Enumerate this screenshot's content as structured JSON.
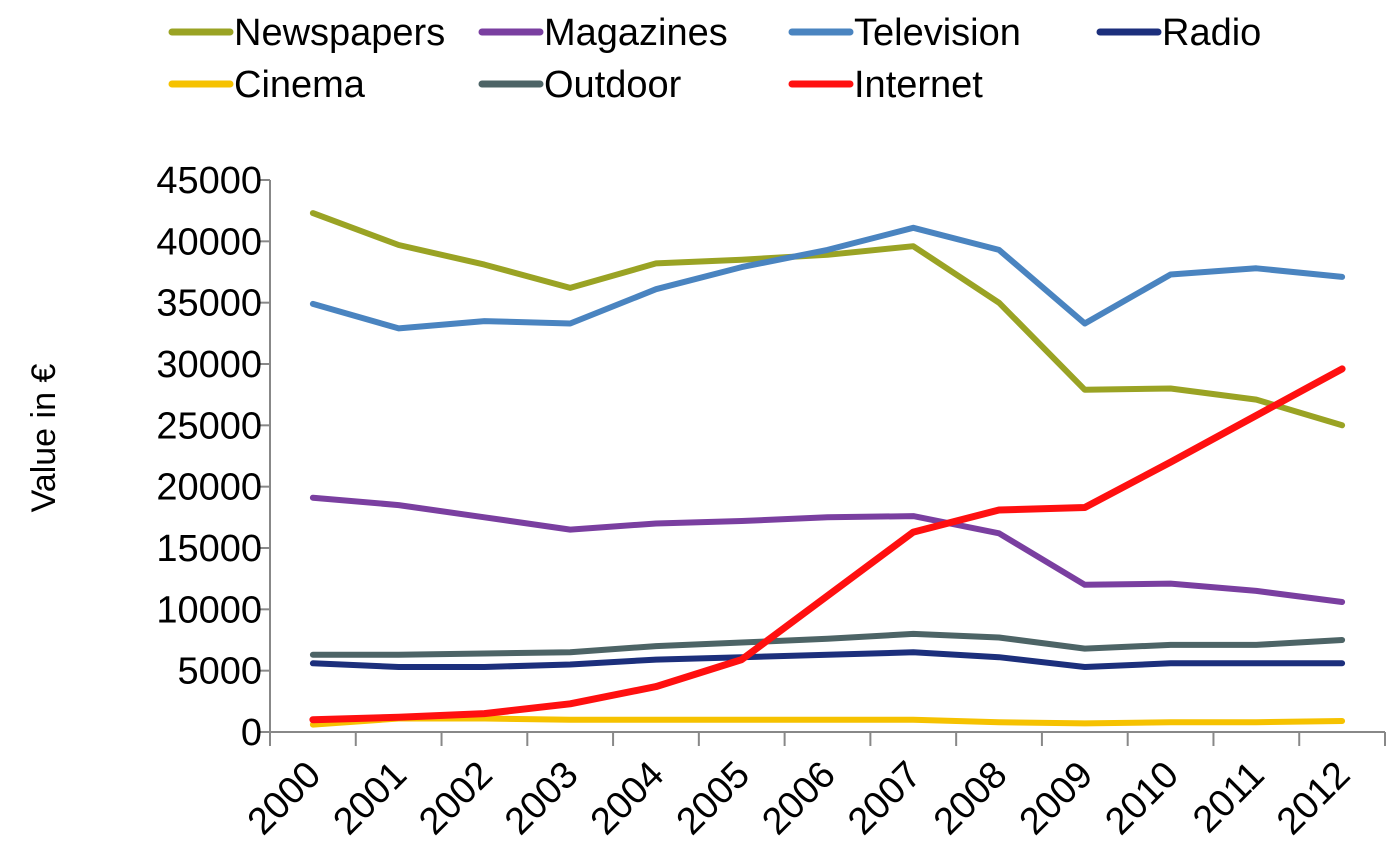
{
  "chart_data": {
    "type": "line",
    "title": "",
    "xlabel": "",
    "ylabel": "Value in €",
    "categories": [
      "2000",
      "2001",
      "2002",
      "2003",
      "2004",
      "2005",
      "2006",
      "2007",
      "2008",
      "2009",
      "2010",
      "2011",
      "2012"
    ],
    "ylim": [
      0,
      45000
    ],
    "yticks": [
      "0",
      "5000",
      "10000",
      "15000",
      "20000",
      "25000",
      "30000",
      "35000",
      "40000",
      "45000"
    ],
    "grid": false,
    "legend_position": "top",
    "series": [
      {
        "name": "Newspapers",
        "color": "#9aa324",
        "values": [
          42300,
          39700,
          38100,
          36200,
          38200,
          38500,
          38900,
          39600,
          35000,
          27900,
          28000,
          27100,
          25000
        ]
      },
      {
        "name": "Magazines",
        "color": "#7a3fa0",
        "values": [
          19100,
          18500,
          17500,
          16500,
          17000,
          17200,
          17500,
          17600,
          16200,
          12000,
          12100,
          11500,
          10600
        ]
      },
      {
        "name": "Television",
        "color": "#4a84c0",
        "values": [
          34900,
          32900,
          33500,
          33300,
          36100,
          37900,
          39300,
          41100,
          39300,
          33300,
          37300,
          37800,
          37100
        ]
      },
      {
        "name": "Radio",
        "color": "#1c2f7c",
        "values": [
          5600,
          5300,
          5300,
          5500,
          5900,
          6100,
          6300,
          6500,
          6100,
          5300,
          5600,
          5600,
          5600
        ]
      },
      {
        "name": "Cinema",
        "color": "#f6c200",
        "values": [
          600,
          1100,
          1100,
          1000,
          1000,
          1000,
          1000,
          1000,
          800,
          700,
          800,
          800,
          900
        ]
      },
      {
        "name": "Outdoor",
        "color": "#4d6466",
        "values": [
          6300,
          6300,
          6400,
          6500,
          7000,
          7300,
          7600,
          8000,
          7700,
          6800,
          7100,
          7100,
          7500
        ]
      },
      {
        "name": "Internet",
        "color": "#ff1010",
        "values": [
          1000,
          1200,
          1500,
          2300,
          3700,
          5900,
          11100,
          16300,
          18100,
          18300,
          22000,
          25800,
          29600
        ]
      }
    ]
  }
}
